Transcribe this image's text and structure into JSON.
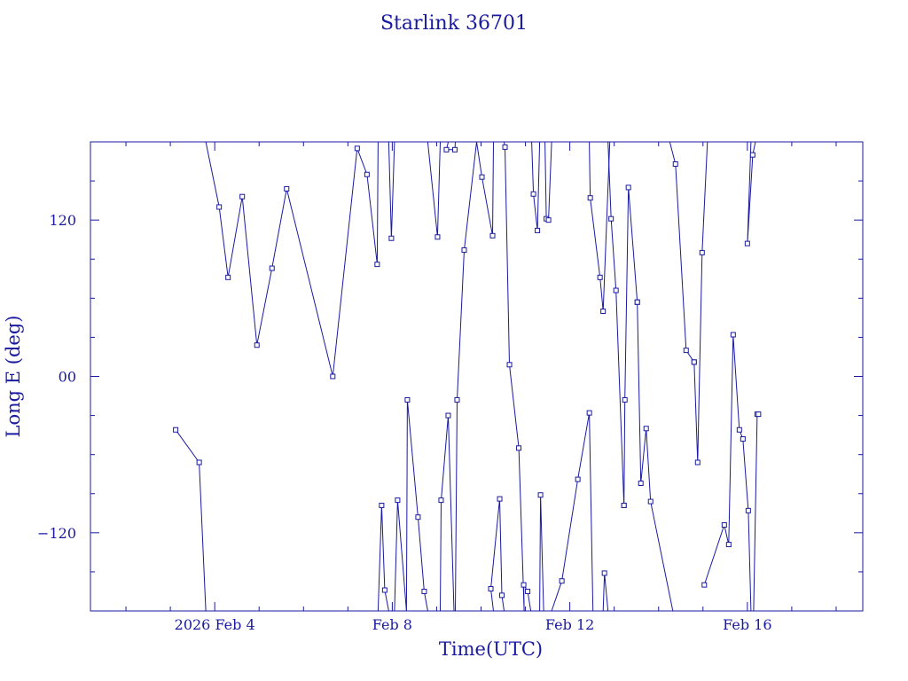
{
  "chart_data": {
    "type": "scatter",
    "title": "Starlink 36701",
    "xlabel": "Time(UTC)",
    "ylabel": "Long E (deg)",
    "x_unit": "days of February 2026",
    "xlim": [
      1.2,
      18.6
    ],
    "ylim": [
      -180,
      180
    ],
    "x_ticks": [
      {
        "x": 4,
        "label": "2026 Feb  4"
      },
      {
        "x": 8,
        "label": "Feb  8"
      },
      {
        "x": 12,
        "label": "Feb 12"
      },
      {
        "x": 16,
        "label": "Feb 16"
      }
    ],
    "y_ticks": [
      {
        "y": 120,
        "label": "120"
      },
      {
        "y": 0,
        "label": "00"
      },
      {
        "y": -120,
        "label": "−120"
      }
    ],
    "color": "#1a1aa0",
    "series": [
      {
        "x": [
          3.12,
          3.65,
          3.8
        ],
        "y": [
          -41,
          -66,
          -180
        ]
      },
      {
        "x": [
          3.8,
          4.1,
          4.3,
          4.62,
          4.95,
          5.29,
          5.62,
          6.66,
          7.21,
          7.43,
          7.66,
          7.68
        ],
        "y": [
          180,
          130,
          76,
          138,
          24,
          83,
          144,
          0,
          175,
          155,
          86,
          180
        ]
      },
      {
        "x": [
          7.68,
          7.76,
          7.83,
          7.92
        ],
        "y": [
          -180,
          -99,
          -164,
          -180
        ]
      },
      {
        "x": [
          7.92,
          7.98,
          8.05
        ],
        "y": [
          180,
          106,
          180
        ]
      },
      {
        "x": [
          8.05,
          8.12,
          8.32
        ],
        "y": [
          -180,
          -95,
          -180
        ]
      },
      {
        "x": [
          8.32,
          8.34,
          8.58,
          8.72,
          8.8
        ],
        "y": [
          -180,
          -18,
          -108,
          -165,
          -180
        ]
      },
      {
        "x": [
          8.8,
          9.02,
          9.08
        ],
        "y": [
          180,
          107,
          180
        ]
      },
      {
        "x": [
          9.08,
          9.1,
          9.26,
          9.39,
          9.42
        ],
        "y": [
          -180,
          -95,
          -30,
          -180,
          -180
        ]
      },
      {
        "x": [
          9.42,
          9.41,
          9.22,
          9.26,
          9.48
        ],
        "y": [
          180,
          174,
          174,
          180,
          180
        ]
      },
      {
        "x": [
          9.42,
          9.46,
          9.62,
          9.9
        ],
        "y": [
          -180,
          -18,
          97,
          180
        ]
      },
      {
        "x": [
          9.9,
          10.02,
          10.26,
          10.28
        ],
        "y": [
          180,
          153,
          108,
          180
        ]
      },
      {
        "x": [
          10.28,
          10.22,
          10.42,
          10.47,
          10.52
        ],
        "y": [
          -180,
          -163,
          -94,
          -168,
          -180
        ]
      },
      {
        "x": [
          10.52,
          10.54,
          10.64,
          10.85,
          10.97
        ],
        "y": [
          180,
          176,
          9,
          -55,
          -180
        ]
      },
      {
        "x": [
          10.97,
          10.96,
          11.05,
          11.12,
          11.14
        ],
        "y": [
          -180,
          -160,
          -165,
          -180,
          -180
        ]
      },
      {
        "x": [
          11.14,
          11.18,
          11.27,
          11.32
        ],
        "y": [
          180,
          140,
          112,
          180
        ]
      },
      {
        "x": [
          11.32,
          11.34,
          11.41,
          11.44
        ],
        "y": [
          -180,
          -91,
          -180,
          -180
        ]
      },
      {
        "x": [
          11.44,
          11.47,
          11.52,
          11.59
        ],
        "y": [
          180,
          121,
          120,
          180
        ]
      },
      {
        "x": [
          11.59,
          11.82,
          12.18,
          12.44,
          12.52,
          12.64
        ],
        "y": [
          -180,
          -157,
          -79,
          -28,
          -180,
          -180
        ]
      },
      {
        "x": [
          12.44,
          12.46,
          12.68,
          12.75,
          12.9
        ],
        "y": [
          180,
          137,
          76,
          50,
          180
        ]
      },
      {
        "x": [
          12.75,
          12.78,
          12.86
        ],
        "y": [
          -180,
          -151,
          -180
        ]
      },
      {
        "x": [
          12.86,
          12.93,
          13.04,
          13.22
        ],
        "y": [
          180,
          121,
          66,
          -99
        ]
      },
      {
        "x": [
          13.22,
          13.24,
          13.32,
          13.52
        ],
        "y": [
          -99,
          -18,
          145,
          57
        ]
      },
      {
        "x": [
          13.52,
          13.6,
          13.72,
          13.82,
          14.32,
          14.49
        ],
        "y": [
          57,
          -82,
          -40,
          -96,
          -180,
          -180
        ]
      },
      {
        "x": [
          14.25,
          14.38,
          14.62,
          14.8
        ],
        "y": [
          180,
          163,
          20,
          11
        ]
      },
      {
        "x": [
          14.8,
          14.88,
          14.98,
          15.1
        ],
        "y": [
          11,
          -66,
          95,
          180
        ]
      },
      {
        "x": [
          15.03,
          15.48,
          15.58,
          15.68,
          15.82,
          15.9,
          16.02,
          16.08
        ],
        "y": [
          -160,
          -114,
          -129,
          32,
          -41,
          -48,
          -103,
          -180
        ]
      },
      {
        "x": [
          16.08,
          16.0,
          16.12,
          16.18
        ],
        "y": [
          180,
          102,
          170,
          180
        ]
      },
      {
        "x": [
          16.14,
          16.22,
          16.25
        ],
        "y": [
          -180,
          -29,
          -29
        ]
      }
    ]
  }
}
